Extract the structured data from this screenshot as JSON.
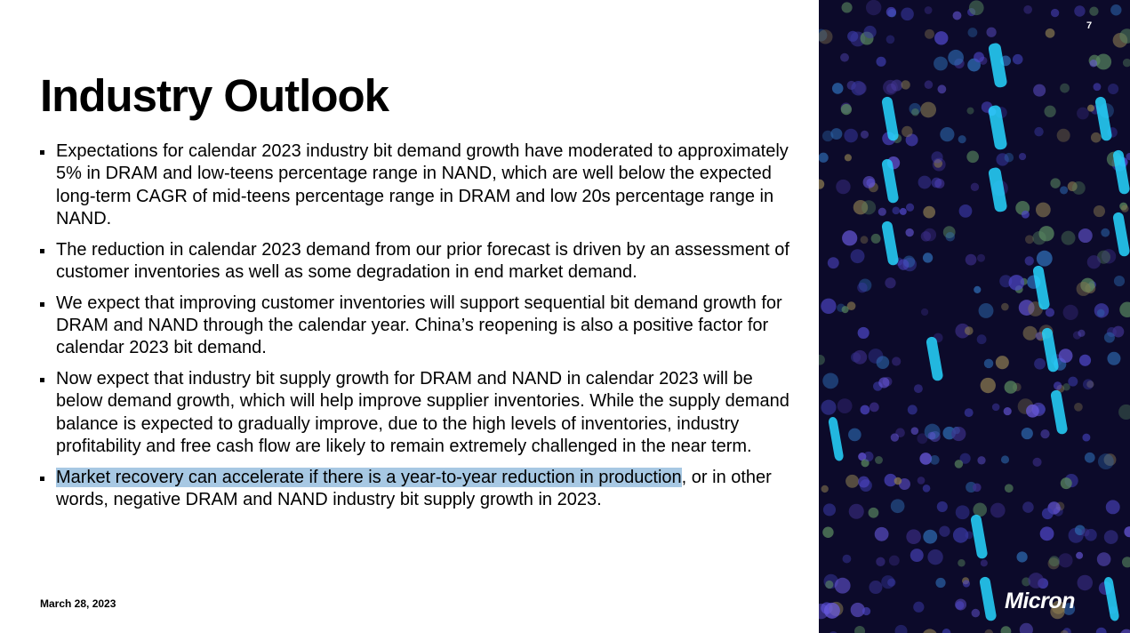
{
  "page_number": "7",
  "title": "Industry Outlook",
  "bullets": [
    "Expectations for calendar 2023 industry bit demand growth have moderated to approximately 5% in DRAM and low-teens percentage range in NAND, which are well below the expected long-term CAGR of mid-teens percentage range in DRAM and low 20s percentage range in NAND.",
    "The reduction in calendar 2023 demand from our prior forecast is driven by an assessment of customer inventories as well as some degradation in end market demand.",
    "We expect that improving customer inventories will support sequential bit demand growth for DRAM and NAND through the calendar year. China’s reopening is also a positive factor for calendar 2023 bit demand.",
    "Now expect that industry bit supply growth for DRAM and NAND in calendar 2023 will be below demand growth, which will help improve supplier inventories. While the supply demand balance is expected to gradually improve, due to the high levels of inventories, industry profitability and free cash flow are likely to remain extremely challenged in the near term.",
    {
      "highlighted": "Market recovery can accelerate if there is a year-to-year reduction in production",
      "text": ", or in other words, negative DRAM and NAND industry bit supply growth in 2023."
    }
  ],
  "date": "March 28, 2023",
  "logo": "Micron"
}
